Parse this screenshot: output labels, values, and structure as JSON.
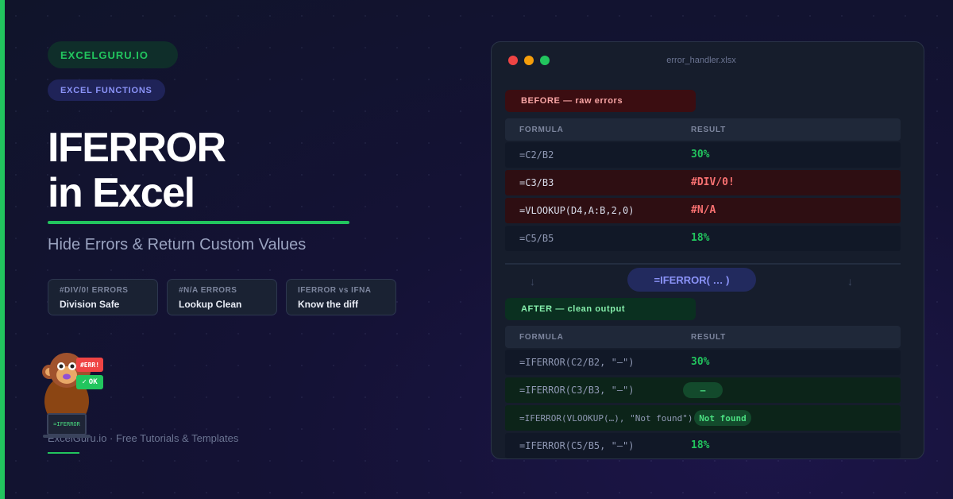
{
  "brand": "EXCELGURU.IO",
  "category": "EXCEL FUNCTIONS",
  "title_line1": "IFERROR",
  "title_line2": "in Excel",
  "subtitle": "Hide Errors & Return Custom Values",
  "features": [
    {
      "top": "#DIV/0! ERRORS",
      "bottom": "Division Safe"
    },
    {
      "top": "#N/A ERRORS",
      "bottom": "Lookup Clean"
    },
    {
      "top": "IFERROR vs IFNA",
      "bottom": "Know the diff"
    }
  ],
  "footer": "ExcelGuru.io · Free Tutorials & Templates",
  "mascot": {
    "err_label": "#ERR!",
    "ok_check": "✓",
    "ok_label": "OK",
    "laptop_label": "=IFERROR"
  },
  "window": {
    "filename": "error_handler.xlsx",
    "before_label": "BEFORE — raw errors",
    "after_label": "AFTER — clean output",
    "col_formula": "FORMULA",
    "col_result": "RESULT",
    "arrow": "↓",
    "middle_label": "=IFERROR( … )",
    "before_rows": [
      {
        "formula": "=C2/B2",
        "result": "30%"
      },
      {
        "formula": "=C3/B3",
        "result": "#DIV/0!"
      },
      {
        "formula": "=VLOOKUP(D4,A:B,2,0)",
        "result": "#N/A"
      },
      {
        "formula": "=C5/B5",
        "result": "18%"
      }
    ],
    "after_rows": [
      {
        "formula": "=IFERROR(C2/B2, \"—\")",
        "result": "30%"
      },
      {
        "formula": "=IFERROR(C3/B3, \"—\")",
        "result": "—"
      },
      {
        "formula": "=IFERROR(VLOOKUP(…), \"Not found\")",
        "result": "Not found"
      },
      {
        "formula": "=IFERROR(C5/B5, \"—\")",
        "result": "18%"
      }
    ]
  },
  "colors": {
    "accent_green": "#22c55e",
    "accent_indigo": "#8b93f8",
    "error_red": "#f87171"
  }
}
